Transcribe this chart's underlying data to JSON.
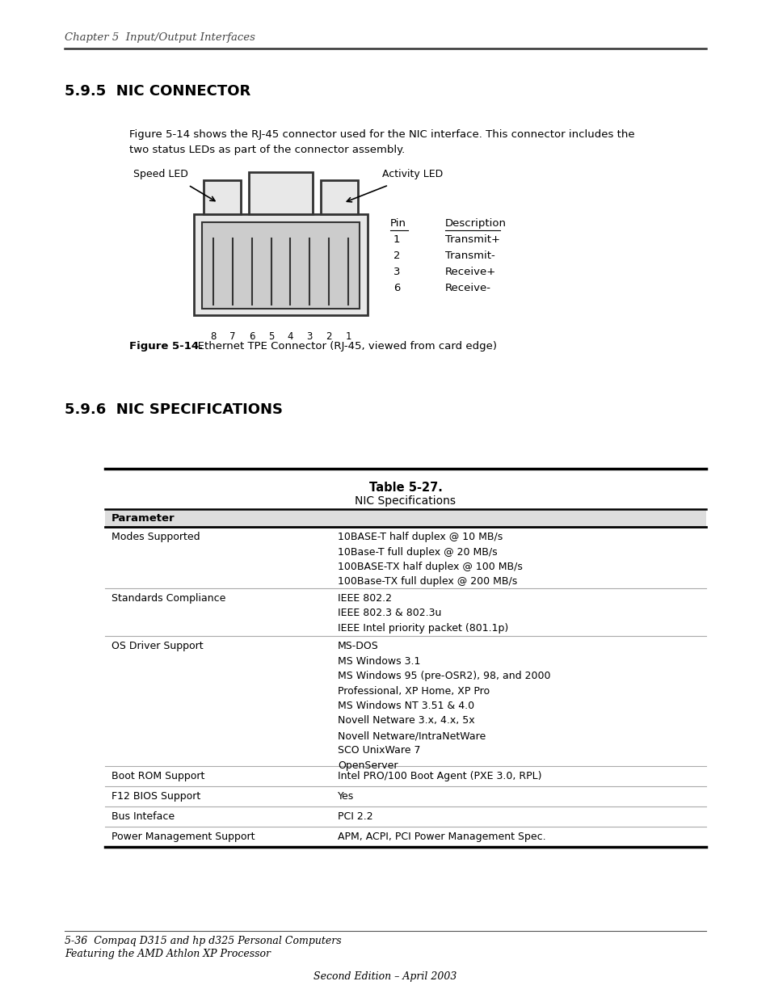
{
  "page_bg": "#ffffff",
  "header_text": "Chapter 5  Input/Output Interfaces",
  "section1_title": "5.9.5  NIC CONNECTOR",
  "section1_body": "Figure 5-14 shows the RJ-45 connector used for the NIC interface. This connector includes the\ntwo status LEDs as part of the connector assembly.",
  "speed_led_label": "Speed LED",
  "activity_led_label": "Activity LED",
  "pin_header": "Pin",
  "desc_header": "Description",
  "pin_data": [
    [
      "1",
      "Transmit+"
    ],
    [
      "2",
      "Transmit-"
    ],
    [
      "3",
      "Receive+"
    ],
    [
      "6",
      "Receive-"
    ]
  ],
  "figure_label": "Figure 5-14.",
  "figure_caption": "   Ethernet TPE Connector (RJ-45, viewed from card edge)",
  "section2_title": "5.9.6  NIC SPECIFICATIONS",
  "table_title_line1": "Table 5-27.",
  "table_title_line2": "NIC Specifications",
  "table_col1_header": "Parameter",
  "table_rows": [
    {
      "param": "Modes Supported",
      "value": "10BASE-T half duplex @ 10 MB/s\n10Base-T full duplex @ 20 MB/s\n100BASE-TX half duplex @ 100 MB/s\n100Base-TX full duplex @ 200 MB/s"
    },
    {
      "param": "Standards Compliance",
      "value": "IEEE 802.2\nIEEE 802.3 & 802.3u\nIEEE Intel priority packet (801.1p)"
    },
    {
      "param": "OS Driver Support",
      "value": "MS-DOS\nMS Windows 3.1\nMS Windows 95 (pre-OSR2), 98, and 2000\nProfessional, XP Home, XP Pro\nMS Windows NT 3.51 & 4.0\nNovell Netware 3.x, 4.x, 5x\nNovell Netware/IntraNetWare\nSCO UnixWare 7\nOpenServer"
    },
    {
      "param": "Boot ROM Support",
      "value": "Intel PRO/100 Boot Agent (PXE 3.0, RPL)"
    },
    {
      "param": "F12 BIOS Support",
      "value": "Yes"
    },
    {
      "param": "Bus Inteface",
      "value": "PCI 2.2"
    },
    {
      "param": "Power Management Support",
      "value": "APM, ACPI, PCI Power Management Spec."
    }
  ],
  "footer_line1": "5-36  Compaq D315 and hp d325 Personal Computers",
  "footer_line2": "Featuring the AMD Athlon XP Processor",
  "footer_center": "Second Edition – April 2003",
  "text_color": "#000000",
  "connector_color": "#333333",
  "connector_fill": "#e8e8e8"
}
